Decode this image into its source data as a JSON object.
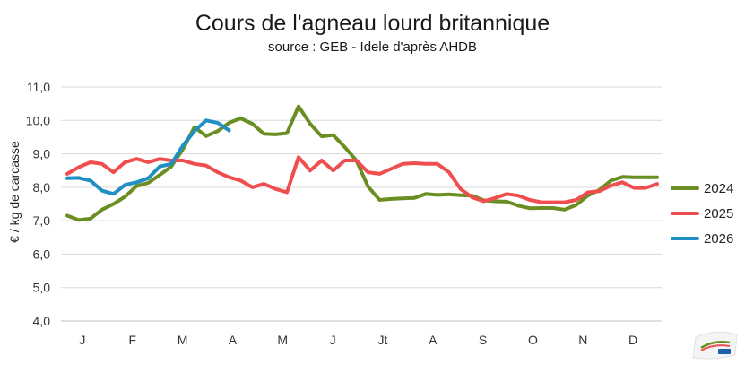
{
  "chart_data": {
    "type": "line",
    "title": "Cours de l'agneau lourd britannique",
    "subtitle": "source : GEB - Idele d'après AHDB",
    "ylabel": "€ / kg de carcasse",
    "xlabel": "",
    "ylim": [
      4.0,
      11.0
    ],
    "y_ticks": [
      "4,0",
      "5,0",
      "6,0",
      "7,0",
      "8,0",
      "9,0",
      "10,0",
      "11,0"
    ],
    "x_ticks": [
      "J",
      "F",
      "M",
      "A",
      "M",
      "J",
      "Jt",
      "A",
      "S",
      "O",
      "N",
      "D"
    ],
    "x_range": [
      1,
      52
    ],
    "x_unit": "semaine",
    "grid": true,
    "legend_position": "right",
    "series": [
      {
        "name": "2024",
        "color": "#6b8e23",
        "x": [
          1,
          2,
          3,
          4,
          5,
          6,
          7,
          8,
          9,
          10,
          11,
          12,
          13,
          14,
          15,
          16,
          17,
          18,
          19,
          20,
          21,
          22,
          23,
          24,
          25,
          26,
          27,
          28,
          29,
          30,
          31,
          32,
          33,
          34,
          35,
          36,
          37,
          38,
          39,
          40,
          41,
          42,
          43,
          44,
          45,
          46,
          47,
          48,
          49,
          50,
          51,
          52
        ],
        "values": [
          7.15,
          7.02,
          7.06,
          7.33,
          7.5,
          7.72,
          8.04,
          8.13,
          8.37,
          8.62,
          9.14,
          9.8,
          9.53,
          9.68,
          9.93,
          10.06,
          9.9,
          9.6,
          9.58,
          9.62,
          10.42,
          9.9,
          9.52,
          9.56,
          9.2,
          8.8,
          8.02,
          7.62,
          7.65,
          7.67,
          7.68,
          7.8,
          7.77,
          7.79,
          7.76,
          7.75,
          7.61,
          7.58,
          7.57,
          7.45,
          7.37,
          7.38,
          7.38,
          7.33,
          7.47,
          7.75,
          7.92,
          8.2,
          8.31,
          8.3,
          8.3,
          8.3
        ]
      },
      {
        "name": "2025",
        "color": "#f04e4e",
        "x": [
          1,
          2,
          3,
          4,
          5,
          6,
          7,
          8,
          9,
          10,
          11,
          12,
          13,
          14,
          15,
          16,
          17,
          18,
          19,
          20,
          21,
          22,
          23,
          24,
          25,
          26,
          27,
          28,
          29,
          30,
          31,
          32,
          33,
          34,
          35,
          36,
          37,
          38,
          39,
          40,
          41,
          42,
          43,
          44,
          45,
          46,
          47,
          48,
          49,
          50,
          51,
          52
        ],
        "values": [
          8.4,
          8.6,
          8.75,
          8.7,
          8.45,
          8.75,
          8.85,
          8.75,
          8.85,
          8.8,
          8.8,
          8.7,
          8.65,
          8.45,
          8.3,
          8.2,
          8.0,
          8.1,
          7.95,
          7.85,
          8.9,
          8.5,
          8.8,
          8.5,
          8.8,
          8.8,
          8.45,
          8.4,
          8.55,
          8.7,
          8.72,
          8.7,
          8.7,
          8.45,
          7.95,
          7.7,
          7.58,
          7.68,
          7.8,
          7.75,
          7.62,
          7.55,
          7.55,
          7.55,
          7.62,
          7.85,
          7.88,
          8.05,
          8.15,
          7.98,
          7.98,
          8.1
        ]
      },
      {
        "name": "2026",
        "color": "#1f8fc4",
        "x": [
          1,
          2,
          3,
          4,
          5,
          6,
          7,
          8,
          9,
          10,
          11,
          12,
          13,
          14,
          15
        ],
        "values": [
          8.27,
          8.28,
          8.2,
          7.9,
          7.8,
          8.07,
          8.15,
          8.27,
          8.62,
          8.7,
          9.25,
          9.68,
          10.0,
          9.93,
          9.7
        ]
      }
    ]
  }
}
